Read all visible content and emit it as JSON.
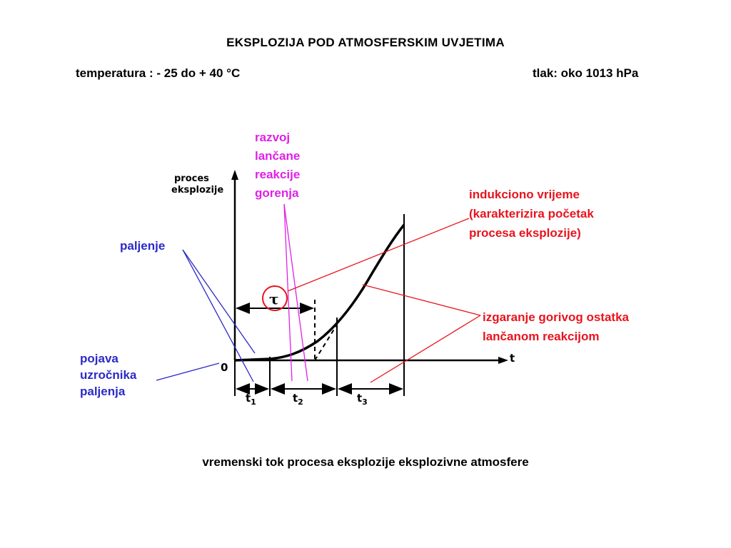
{
  "header": {
    "title": "EKSPLOZIJA  POD  ATMOSFERSKIM  UVJETIMA",
    "temperature": "temperatura : - 25 do  + 40 °C",
    "pressure": "tlak: oko 1013 hPa"
  },
  "diagram": {
    "y_axis_label_line1": "proces",
    "y_axis_label_line2": "eksplozije",
    "x_axis_label": "t",
    "origin_label": "0",
    "tau_label": "τ",
    "phases": {
      "t1": {
        "letter": "t",
        "sub": "1"
      },
      "t2": {
        "letter": "t",
        "sub": "2"
      },
      "t3": {
        "letter": "t",
        "sub": "3"
      }
    }
  },
  "annotations": {
    "razvoj": [
      "razvoj",
      "lančane",
      "reakcije",
      "gorenja"
    ],
    "indukcija": [
      "indukciono vrijeme",
      "(karakterizira početak",
      "procesa eksplozije)"
    ],
    "izgaranje": [
      "izgaranje gorivog ostatka",
      "lančanom reakcijom"
    ],
    "paljenje": "paljenje",
    "pojava": [
      "pojava",
      "uzročnika",
      "paljenja"
    ]
  },
  "caption": "vremenski tok procesa eksplozije eksplozivne atmosfere",
  "colors": {
    "red": "#e8141e",
    "magenta": "#e020e8",
    "blue": "#2a2ac8",
    "black": "#000000"
  }
}
